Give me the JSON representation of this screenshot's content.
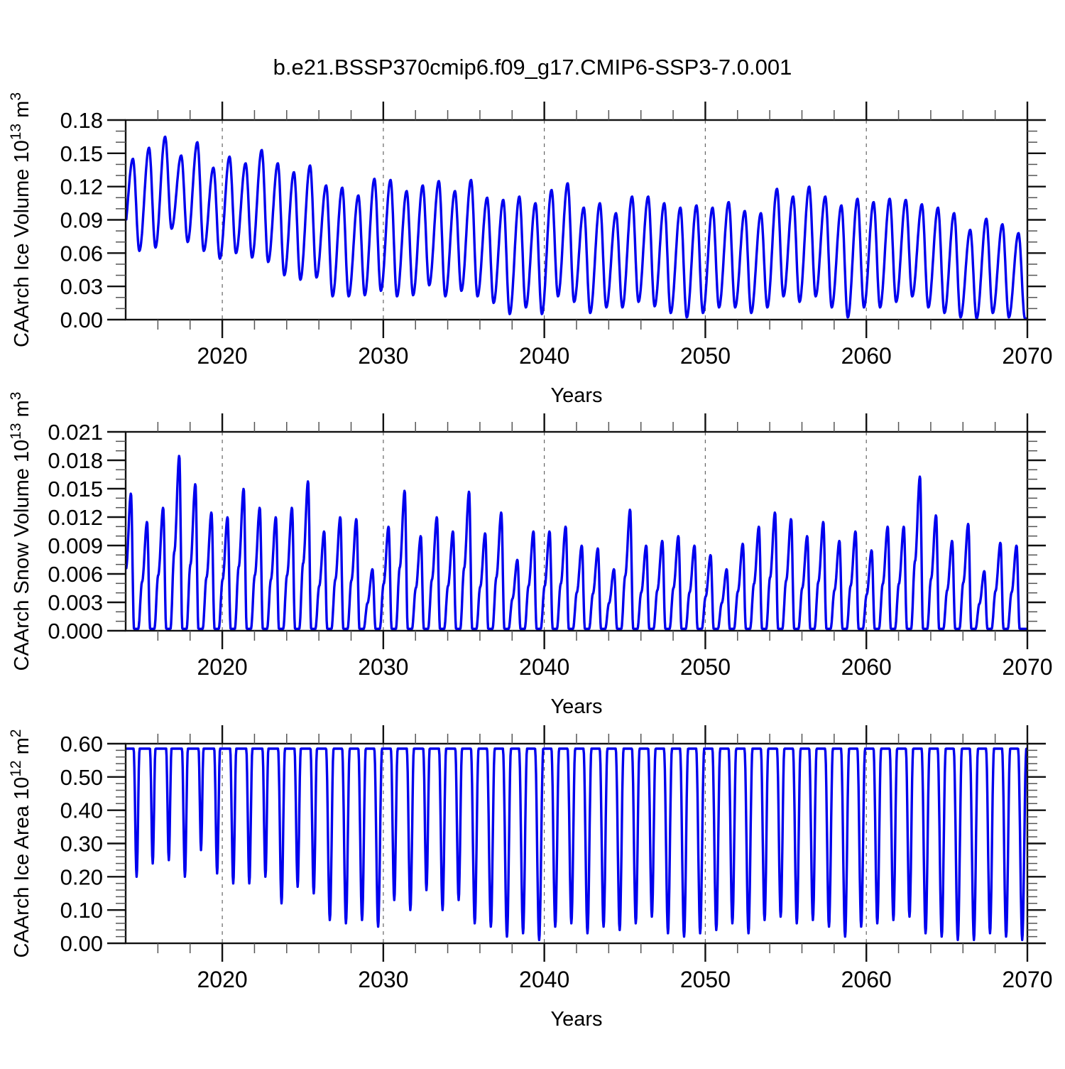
{
  "title": "b.e21.BSSP370cmip6.f09_g17.CMIP6-SSP3-7.0.001",
  "xlabel": "Years",
  "line_color": "#0000ee",
  "axes": {
    "x_start_year": 2014,
    "x_end_year": 2070,
    "x_major_ticks": [
      2020,
      2030,
      2040,
      2050,
      2060,
      2070
    ],
    "x_minor_step_years": 2,
    "grid_years": [
      2020,
      2030,
      2040,
      2050,
      2060
    ],
    "grid_style": "dashed"
  },
  "chart_data": [
    {
      "name": "ice-volume",
      "type": "line",
      "model": "peak_trough",
      "ylabel_parts": [
        {
          "text": "CAArch Ice Volume 10",
          "sup": false
        },
        {
          "text": "13",
          "sup": true
        },
        {
          "text": " m",
          "sup": false
        },
        {
          "text": "3",
          "sup": true
        }
      ],
      "ylim": [
        0,
        0.18
      ],
      "ymajor_step": 0.03,
      "yminor_step": 0.01,
      "ytick_labels": [
        "0.00",
        "0.03",
        "0.06",
        "0.09",
        "0.12",
        "0.15",
        "0.18"
      ],
      "years_start": 2014,
      "peak_phase": 0.45,
      "trough_phase": 0.85,
      "annual_peak": [
        0.145,
        0.155,
        0.165,
        0.148,
        0.16,
        0.137,
        0.147,
        0.141,
        0.153,
        0.141,
        0.133,
        0.139,
        0.121,
        0.119,
        0.112,
        0.127,
        0.126,
        0.116,
        0.121,
        0.125,
        0.116,
        0.126,
        0.11,
        0.108,
        0.111,
        0.105,
        0.117,
        0.123,
        0.101,
        0.105,
        0.096,
        0.111,
        0.111,
        0.105,
        0.101,
        0.103,
        0.101,
        0.106,
        0.098,
        0.096,
        0.118,
        0.111,
        0.12,
        0.111,
        0.103,
        0.109,
        0.106,
        0.109,
        0.108,
        0.104,
        0.101,
        0.096,
        0.081,
        0.091,
        0.086,
        0.078
      ],
      "annual_min": [
        0.062,
        0.065,
        0.082,
        0.07,
        0.062,
        0.055,
        0.06,
        0.056,
        0.052,
        0.04,
        0.036,
        0.038,
        0.021,
        0.021,
        0.022,
        0.026,
        0.021,
        0.022,
        0.031,
        0.021,
        0.026,
        0.021,
        0.015,
        0.005,
        0.011,
        0.005,
        0.021,
        0.016,
        0.006,
        0.011,
        0.011,
        0.016,
        0.012,
        0.006,
        0.002,
        0.006,
        0.011,
        0.011,
        0.006,
        0.011,
        0.021,
        0.016,
        0.021,
        0.011,
        0.002,
        0.011,
        0.011,
        0.016,
        0.021,
        0.011,
        0.006,
        0.002,
        0.001,
        0.006,
        0.002,
        0.001
      ]
    },
    {
      "name": "snow-volume",
      "type": "line",
      "model": "snow",
      "ylabel_parts": [
        {
          "text": "CAArch Snow Volume 10",
          "sup": false
        },
        {
          "text": "13",
          "sup": true
        },
        {
          "text": " m",
          "sup": false
        },
        {
          "text": "3",
          "sup": true
        }
      ],
      "ylim": [
        0,
        0.021
      ],
      "ymajor_step": 0.003,
      "yminor_step": 0.001,
      "ytick_labels": [
        "0.000",
        "0.003",
        "0.006",
        "0.009",
        "0.012",
        "0.015",
        "0.018",
        "0.021"
      ],
      "years_start": 2014,
      "peak_phase": 0.33,
      "melt_end_phase": 0.52,
      "zero_end_phase": 0.78,
      "annual_peak": [
        0.0145,
        0.0115,
        0.013,
        0.0185,
        0.0155,
        0.0125,
        0.012,
        0.015,
        0.013,
        0.012,
        0.013,
        0.0158,
        0.0105,
        0.012,
        0.0118,
        0.0065,
        0.011,
        0.0148,
        0.01,
        0.012,
        0.0105,
        0.0147,
        0.0103,
        0.0125,
        0.0075,
        0.0105,
        0.0105,
        0.011,
        0.009,
        0.0087,
        0.0065,
        0.0128,
        0.009,
        0.0095,
        0.01,
        0.009,
        0.008,
        0.0065,
        0.0092,
        0.011,
        0.0125,
        0.0118,
        0.01,
        0.0115,
        0.0095,
        0.0105,
        0.0085,
        0.011,
        0.011,
        0.0163,
        0.0122,
        0.0095,
        0.0113,
        0.0063,
        0.0093,
        0.009
      ],
      "annual_min_value": 0.0
    },
    {
      "name": "ice-area",
      "type": "line",
      "model": "plateau_dip",
      "ylabel_parts": [
        {
          "text": "CAArch Ice Area 10",
          "sup": false
        },
        {
          "text": "12",
          "sup": true
        },
        {
          "text": " m",
          "sup": false
        },
        {
          "text": "2",
          "sup": true
        }
      ],
      "ylim": [
        0,
        0.6
      ],
      "ymajor_step": 0.1,
      "yminor_step": 0.02,
      "ytick_labels": [
        "0.00",
        "0.10",
        "0.20",
        "0.30",
        "0.40",
        "0.50",
        "0.60"
      ],
      "years_start": 2014,
      "plateau": 0.585,
      "dip_phase": 0.68,
      "annual_min": [
        0.2,
        0.24,
        0.25,
        0.2,
        0.28,
        0.21,
        0.18,
        0.18,
        0.2,
        0.12,
        0.17,
        0.15,
        0.07,
        0.06,
        0.07,
        0.05,
        0.13,
        0.1,
        0.16,
        0.1,
        0.13,
        0.06,
        0.05,
        0.02,
        0.03,
        0.01,
        0.05,
        0.06,
        0.03,
        0.05,
        0.04,
        0.06,
        0.08,
        0.03,
        0.02,
        0.03,
        0.04,
        0.06,
        0.03,
        0.07,
        0.08,
        0.06,
        0.07,
        0.05,
        0.02,
        0.05,
        0.06,
        0.07,
        0.08,
        0.03,
        0.02,
        0.01,
        0.01,
        0.03,
        0.02,
        0.01
      ]
    }
  ]
}
